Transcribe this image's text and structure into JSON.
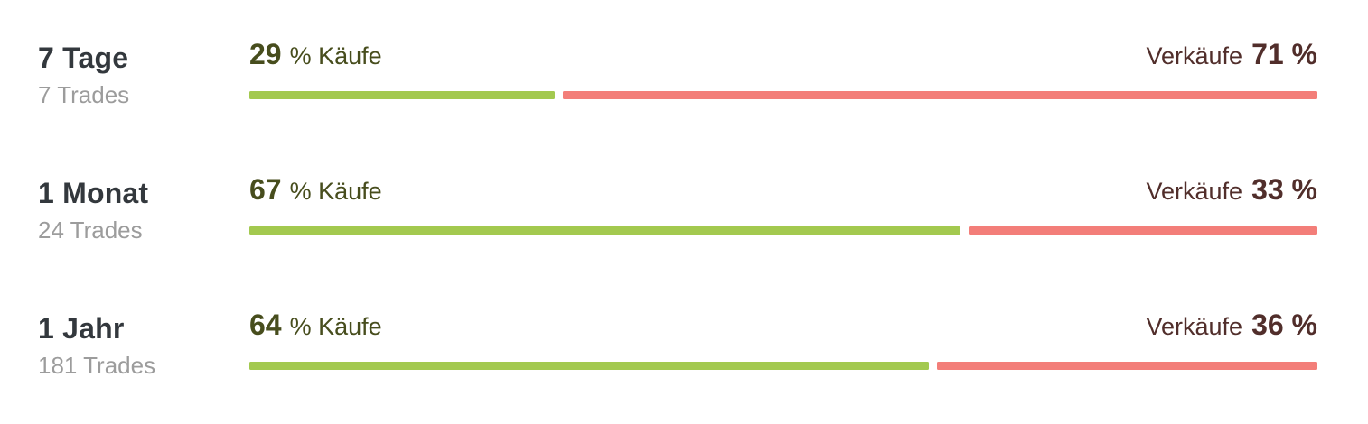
{
  "colors": {
    "bg": "#ffffff",
    "title": "#33383d",
    "subtitle": "#9c9c9c",
    "buy-text": "#474d1d",
    "sell-text": "#512e2b",
    "buy-bar": "#a3c94f",
    "sell-bar": "#f37e79"
  },
  "layout": {
    "bar_gap": 9
  },
  "rows": [
    {
      "period": "7 Tage",
      "trades": "7 Trades",
      "buy_num": "29",
      "buy_text": "% Käufe",
      "sell_text": "Verkäufe",
      "sell_num": "71 %",
      "buy_pct": 29,
      "sell_pct": 71
    },
    {
      "period": "1 Monat",
      "trades": "24 Trades",
      "buy_num": "67",
      "buy_text": "% Käufe",
      "sell_text": "Verkäufe",
      "sell_num": "33 %",
      "buy_pct": 67,
      "sell_pct": 33
    },
    {
      "period": "1 Jahr",
      "trades": "181 Trades",
      "buy_num": "64",
      "buy_text": "% Käufe",
      "sell_text": "Verkäufe",
      "sell_num": "36 %",
      "buy_pct": 64,
      "sell_pct": 36
    }
  ],
  "chart_data": {
    "type": "bar",
    "subtype": "horizontal-stacked-percentage",
    "categories": [
      "7 Tage",
      "1 Monat",
      "1 Jahr"
    ],
    "category_sublabels": [
      "7 Trades",
      "24 Trades",
      "181 Trades"
    ],
    "series": [
      {
        "name": "Käufe",
        "values": [
          29,
          67,
          64
        ],
        "color": "#a3c94f"
      },
      {
        "name": "Verkäufe",
        "values": [
          71,
          33,
          36
        ],
        "color": "#f37e79"
      }
    ],
    "unit": "%",
    "xlim": [
      0,
      100
    ],
    "grid": false,
    "legend_position": "inline-labels",
    "value_labels": [
      "29 % Käufe / Verkäufe 71 %",
      "67 % Käufe / Verkäufe 33 %",
      "64 % Käufe / Verkäufe 36 %"
    ]
  }
}
